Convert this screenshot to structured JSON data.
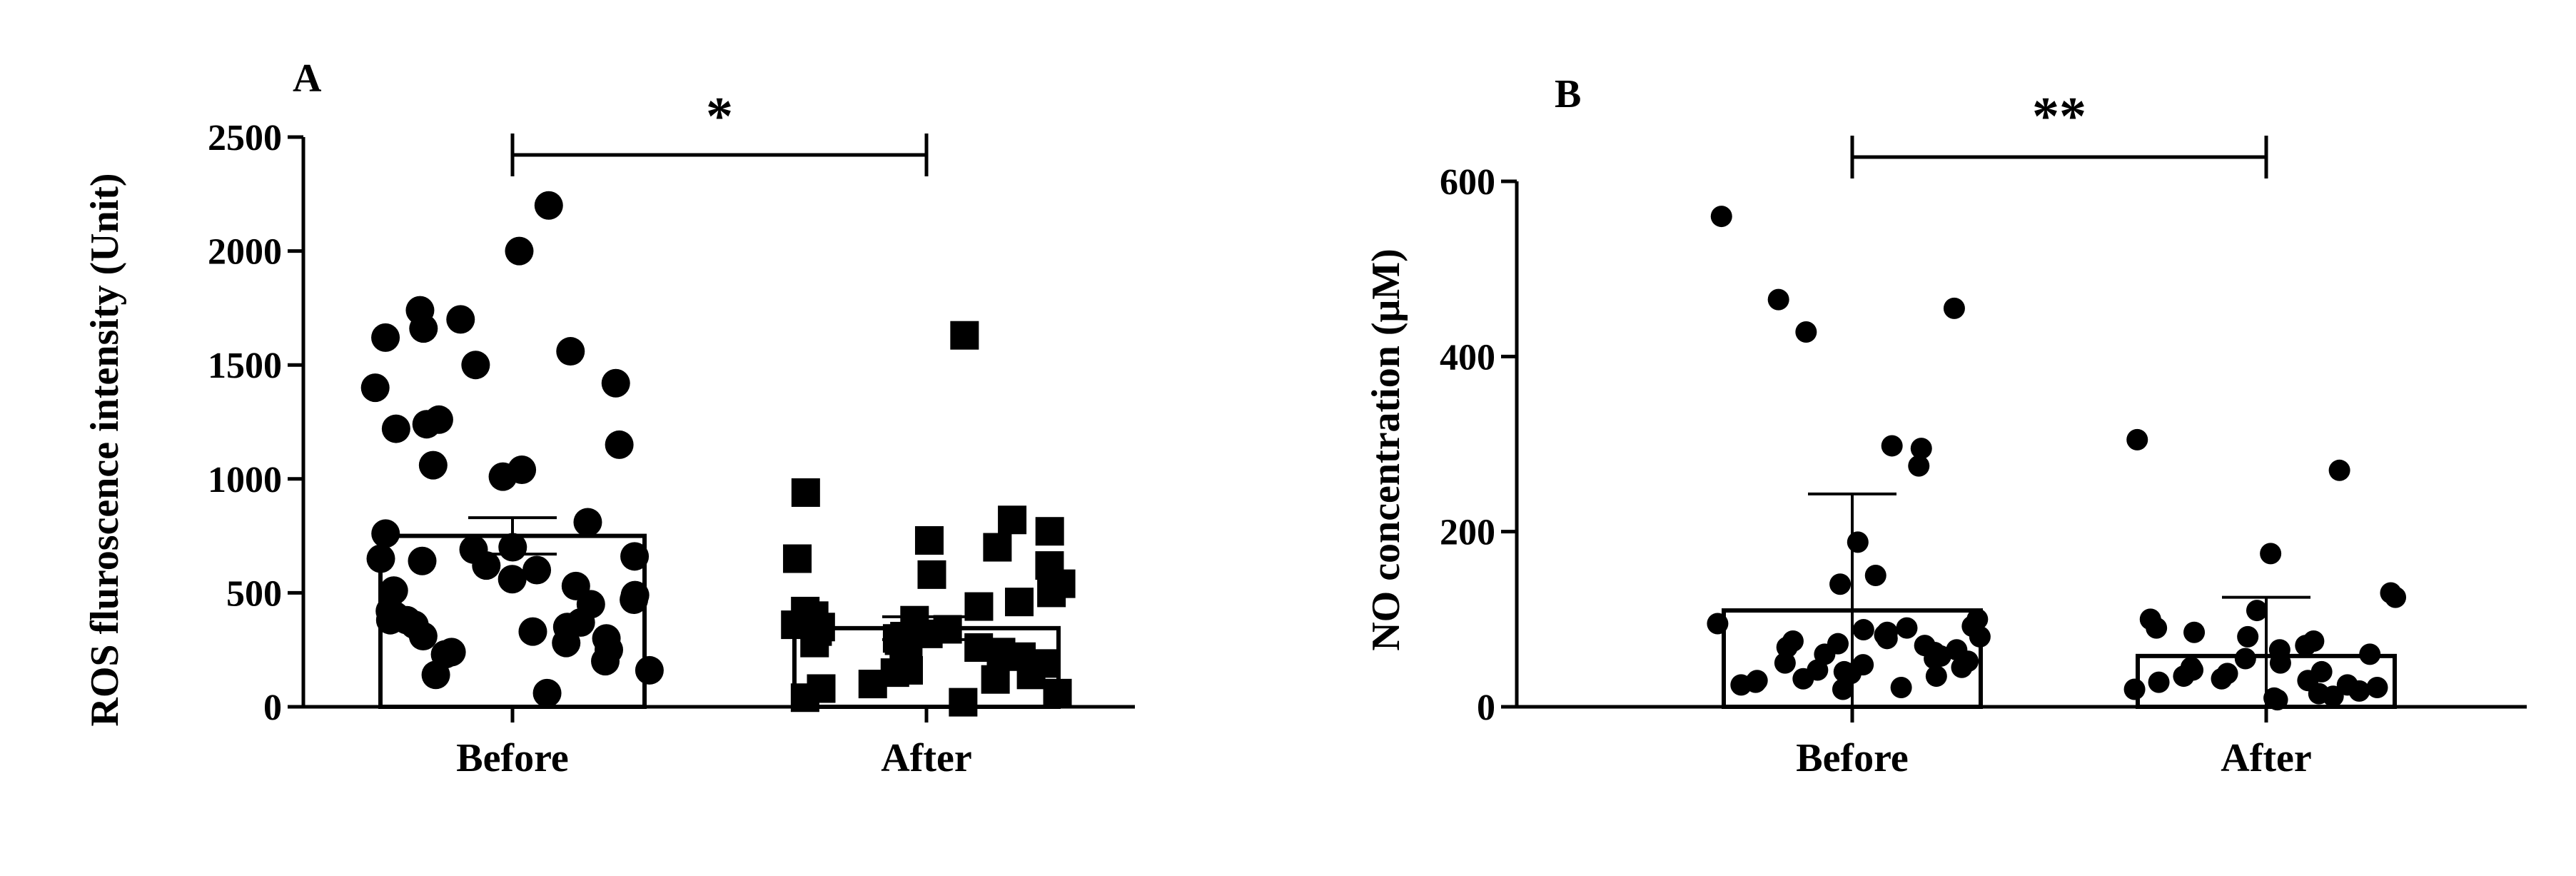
{
  "chart_data": [
    {
      "panel": "A",
      "type": "bar",
      "ylabel": "ROS fluroscence intensity (Unit)",
      "ylim": [
        0,
        2500
      ],
      "yticks": [
        0,
        500,
        1000,
        1500,
        2000,
        2500
      ],
      "categories": [
        "Before",
        "After"
      ],
      "marker_shapes": [
        "circle",
        "square"
      ],
      "bars": [
        {
          "category": "Before",
          "mean": 750,
          "error_top": 830,
          "error_bottom": 670,
          "points": [
            2200,
            2000,
            1740,
            1700,
            1660,
            1620,
            1560,
            1500,
            1420,
            1400,
            1260,
            1240,
            1220,
            1150,
            1060,
            1040,
            1010,
            810,
            760,
            700,
            690,
            660,
            650,
            640,
            620,
            600,
            560,
            530,
            510,
            490,
            470,
            450,
            420,
            400,
            380,
            380,
            370,
            360,
            350,
            330,
            310,
            300,
            280,
            250,
            240,
            230,
            200,
            160,
            140,
            60
          ]
        },
        {
          "category": "After",
          "mean": 345,
          "error_top": 395,
          "error_bottom": 295,
          "points": [
            1630,
            940,
            820,
            770,
            730,
            700,
            650,
            620,
            580,
            540,
            500,
            460,
            440,
            420,
            400,
            380,
            370,
            360,
            350,
            340,
            330,
            320,
            310,
            300,
            290,
            280,
            260,
            240,
            220,
            200,
            190,
            180,
            160,
            150,
            140,
            120,
            100,
            80,
            60,
            40,
            20
          ]
        }
      ],
      "significance": "*"
    },
    {
      "panel": "B",
      "type": "bar",
      "ylabel": "NO concentration (μM)",
      "ylim": [
        0,
        600
      ],
      "yticks": [
        0,
        200,
        400,
        600
      ],
      "categories": [
        "Before",
        "After"
      ],
      "marker_shapes": [
        "circle",
        "circle"
      ],
      "bars": [
        {
          "category": "Before",
          "mean": 110,
          "error_top": 243,
          "error_bottom": 0,
          "points": [
            560,
            465,
            455,
            428,
            298,
            295,
            275,
            188,
            150,
            140,
            100,
            95,
            92,
            90,
            88,
            85,
            82,
            80,
            78,
            75,
            72,
            70,
            68,
            65,
            62,
            60,
            58,
            55,
            52,
            50,
            48,
            45,
            42,
            40,
            38,
            35,
            32,
            30,
            28,
            25,
            22,
            20
          ]
        },
        {
          "category": "After",
          "mean": 58,
          "error_top": 125,
          "error_bottom": 0,
          "points": [
            305,
            270,
            175,
            130,
            125,
            110,
            100,
            90,
            85,
            80,
            75,
            70,
            65,
            60,
            55,
            50,
            45,
            42,
            40,
            38,
            35,
            32,
            30,
            28,
            25,
            22,
            20,
            18,
            15,
            12,
            10,
            8
          ]
        }
      ],
      "significance": "**"
    }
  ]
}
